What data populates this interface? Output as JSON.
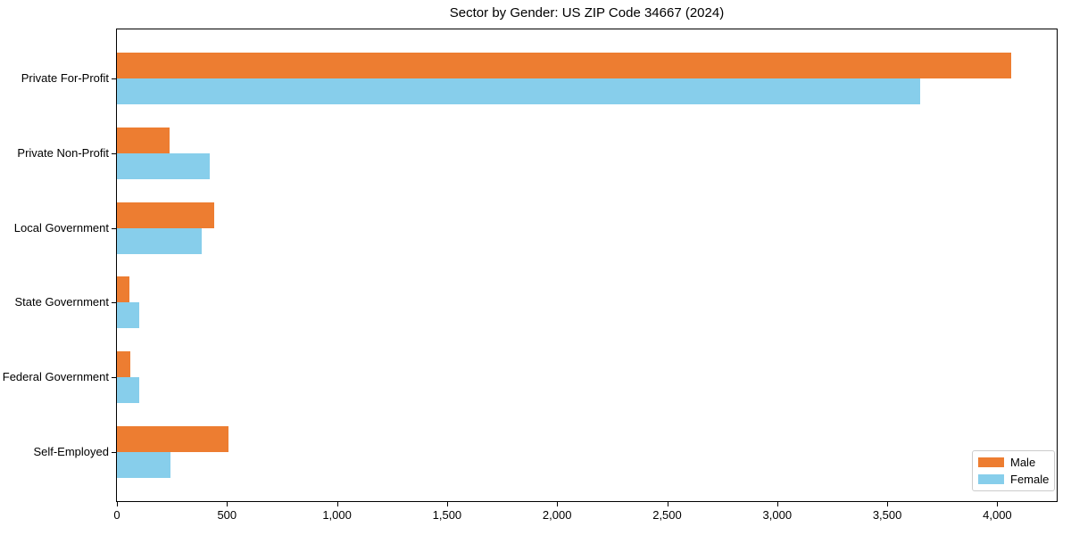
{
  "chart": {
    "title": "Sector by Gender: US ZIP Code 34667 (2024)"
  },
  "chart_data": {
    "type": "bar",
    "orientation": "horizontal",
    "title": "Sector by Gender: US ZIP Code 34667 (2024)",
    "categories": [
      "Private For-Profit",
      "Private Non-Profit",
      "Local Government",
      "State Government",
      "Federal Government",
      "Self-Employed"
    ],
    "series": [
      {
        "name": "Male",
        "color": "#ed7d31",
        "values": [
          4065,
          240,
          440,
          55,
          60,
          505
        ]
      },
      {
        "name": "Female",
        "color": "#87ceeb",
        "values": [
          3650,
          420,
          385,
          100,
          100,
          245
        ]
      }
    ],
    "xlabel": "",
    "ylabel": "",
    "xlim": [
      0,
      4270
    ],
    "x_ticks": [
      0,
      500,
      1000,
      1500,
      2000,
      2500,
      3000,
      3500,
      4000
    ],
    "x_tick_labels": [
      "0",
      "500",
      "1,000",
      "1,500",
      "2,000",
      "2,500",
      "3,000",
      "3,500",
      "4,000"
    ],
    "grid": false,
    "legend_position": "lower right"
  }
}
